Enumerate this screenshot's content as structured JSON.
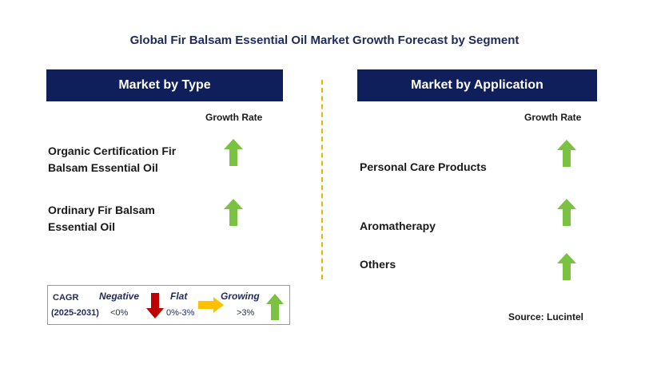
{
  "title": "Global Fir Balsam Essential Oil Market Growth Forecast by Segment",
  "left_panel": {
    "header": "Market by Type",
    "column_label": "Growth Rate",
    "segments": [
      {
        "line1": "Organic Certification Fir",
        "line2": "Balsam Essential Oil",
        "trend": "growing"
      },
      {
        "line1": "Ordinary Fir Balsam",
        "line2": "Essential Oil",
        "trend": "growing"
      }
    ]
  },
  "right_panel": {
    "header": "Market by Application",
    "column_label": "Growth Rate",
    "segments": [
      {
        "label": "Personal Care Products",
        "trend": "growing"
      },
      {
        "label": "Aromatherapy",
        "trend": "growing"
      },
      {
        "label": "Others",
        "trend": "growing"
      }
    ]
  },
  "legend": {
    "cagr_label": "CAGR",
    "period": "(2025-2031)",
    "negative_label": "Negative",
    "negative_range": "<0%",
    "flat_label": "Flat",
    "flat_range": "0%-3%",
    "growing_label": "Growing",
    "growing_range": ">3%"
  },
  "source": "Source: Lucintel",
  "colors": {
    "header_bg": "#0f1f5c",
    "growing": "#7cc242",
    "negative": "#c00000",
    "flat": "#ffc000",
    "divider": "#f0b400"
  }
}
